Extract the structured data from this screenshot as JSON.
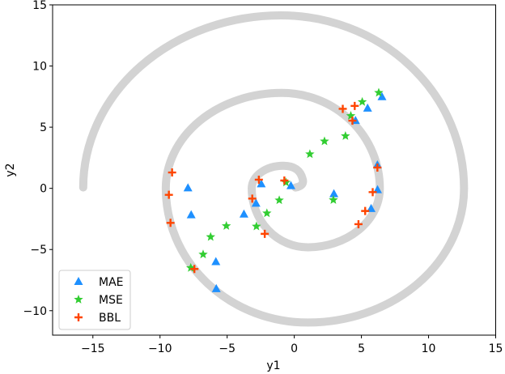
{
  "chart_data": {
    "type": "scatter",
    "title": "",
    "xlabel": "y1",
    "ylabel": "y2",
    "xlim": [
      -18,
      15
    ],
    "ylim": [
      -12,
      15
    ],
    "xticks": [
      -15,
      -10,
      -5,
      0,
      5,
      10,
      15
    ],
    "yticks": [
      -10,
      -5,
      0,
      5,
      10,
      15
    ],
    "xtick_labels": [
      "−15",
      "−10",
      "−5",
      "0",
      "5",
      "10",
      "15"
    ],
    "ytick_labels": [
      "−10",
      "−5",
      "0",
      "5",
      "10",
      "15"
    ],
    "grid": false,
    "legend_position": "lower left",
    "background_curve": {
      "name": "spiral",
      "color": "#d3d3d3",
      "keypoints": [
        [
          0.09,
          0.07
        ],
        [
          0.63,
          0.73
        ],
        [
          -0.81,
          1.85
        ],
        [
          -3.17,
          0.0
        ],
        [
          1.0,
          -4.82
        ],
        [
          6.37,
          0.0
        ],
        [
          -0.94,
          7.8
        ],
        [
          -9.57,
          0.0
        ],
        [
          1.0,
          -10.97
        ],
        [
          12.64,
          0.0
        ],
        [
          -1.0,
          14.14
        ],
        [
          -15.72,
          0.07
        ]
      ]
    },
    "series": [
      {
        "name": "MAE",
        "marker": "triangle",
        "color": "#1e90ff",
        "x": [
          -7.92,
          -7.68,
          -2.46,
          -0.25,
          -2.85,
          -3.75,
          -5.84,
          -5.81,
          6.53,
          5.46,
          4.56,
          2.95,
          6.19,
          6.2,
          5.72
        ],
        "y": [
          0.02,
          -2.18,
          0.35,
          0.2,
          -1.24,
          -2.12,
          -6.01,
          -8.22,
          7.47,
          6.54,
          5.53,
          -0.46,
          1.9,
          -0.13,
          -1.67
        ]
      },
      {
        "name": "MSE",
        "marker": "star",
        "color": "#32cd32",
        "x": [
          -0.62,
          -1.12,
          -2.04,
          -2.82,
          -5.06,
          -6.23,
          -6.79,
          -7.71,
          6.29,
          5.06,
          4.21,
          3.81,
          2.25,
          1.16,
          2.91
        ],
        "y": [
          0.48,
          -0.97,
          -2.03,
          -3.11,
          -3.07,
          -3.97,
          -5.4,
          -6.5,
          7.82,
          7.07,
          5.93,
          4.28,
          3.85,
          2.8,
          -0.95
        ]
      },
      {
        "name": "BBL",
        "marker": "plus",
        "color": "#ff4500",
        "x": [
          -9.1,
          -9.34,
          -9.22,
          -2.64,
          -0.74,
          -3.13,
          -2.2,
          -7.44,
          3.61,
          4.5,
          4.33,
          6.19,
          5.84,
          5.28,
          4.78
        ],
        "y": [
          1.3,
          -0.53,
          -2.82,
          0.71,
          0.64,
          -0.84,
          -3.72,
          -6.59,
          6.5,
          6.74,
          5.53,
          1.7,
          -0.31,
          -1.85,
          -2.93
        ]
      }
    ]
  }
}
